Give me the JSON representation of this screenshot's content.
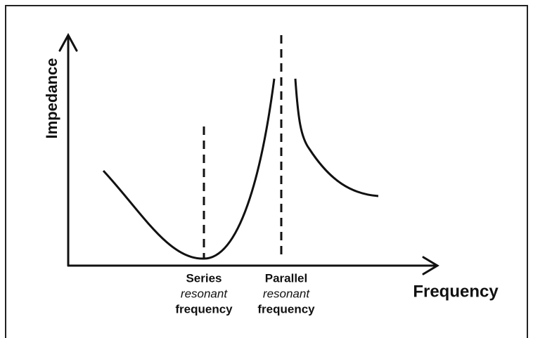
{
  "axes": {
    "y_label": "Impedance",
    "x_label": "Frequency"
  },
  "annotations": [
    {
      "lines": [
        "Series",
        "resonant",
        "frequency"
      ]
    },
    {
      "lines": [
        "Parallel",
        "resonant",
        "frequency"
      ]
    }
  ]
}
